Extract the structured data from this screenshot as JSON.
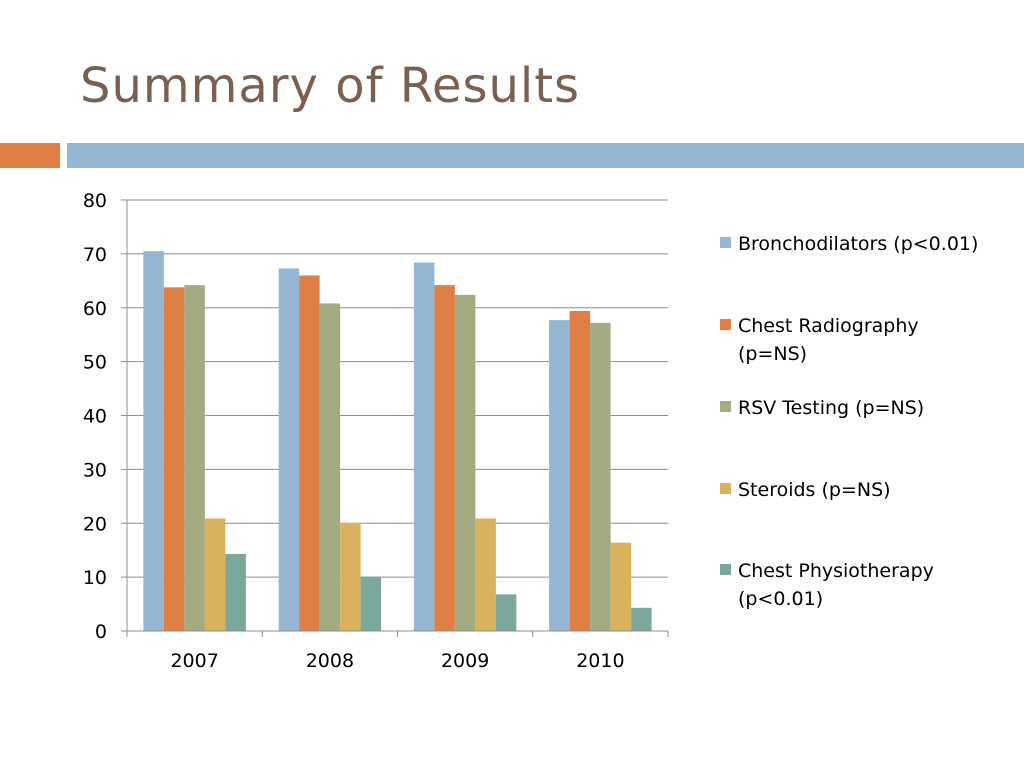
{
  "slide": {
    "title": "Summary of Results",
    "accent_colors": {
      "orange": "#e07f45",
      "blue": "#94b6d2"
    }
  },
  "chart_data": {
    "type": "bar",
    "title": "",
    "xlabel": "",
    "ylabel": "",
    "ylim": [
      0,
      80
    ],
    "yticks": [
      "0",
      "10",
      "20",
      "30",
      "40",
      "50",
      "60",
      "70",
      "80"
    ],
    "grid": true,
    "legend_position": "right",
    "categories": [
      "2007",
      "2008",
      "2009",
      "2010"
    ],
    "series": [
      {
        "name": "Bronchodilators (p<0.01)",
        "color": "#94b6d2",
        "values": [
          70.5,
          67.3,
          68.4,
          57.7
        ]
      },
      {
        "name": "Chest Radiography (p=NS)",
        "color": "#e07f45",
        "values": [
          63.8,
          66.0,
          64.2,
          59.4
        ]
      },
      {
        "name": "RSV Testing (p=NS)",
        "color": "#a5ab81",
        "values": [
          64.2,
          60.8,
          62.4,
          57.2
        ]
      },
      {
        "name": "Steroids (p=NS)",
        "color": "#d8b25c",
        "values": [
          20.9,
          20.1,
          20.9,
          16.4
        ]
      },
      {
        "name": "Chest Physiotherapy (p<0.01)",
        "color": "#7ba79d",
        "values": [
          14.3,
          10.1,
          6.8,
          4.3
        ]
      }
    ]
  }
}
